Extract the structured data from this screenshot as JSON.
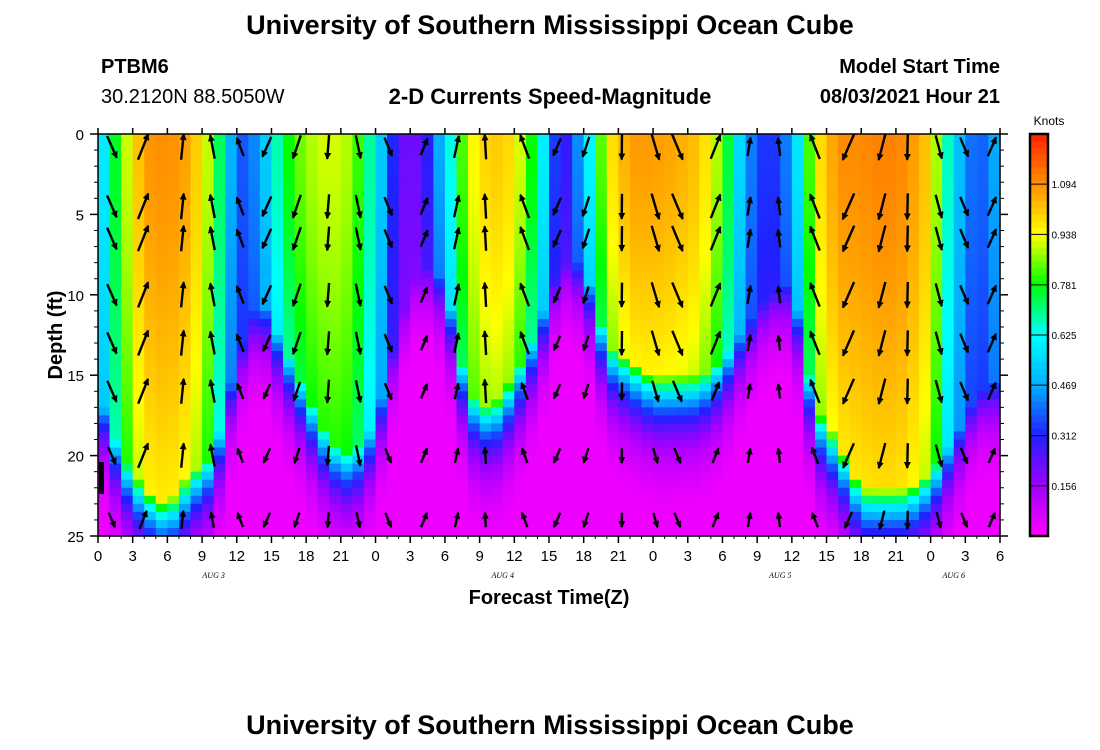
{
  "header": {
    "title": "University of Southern Mississippi Ocean Cube",
    "station": "PTBM6",
    "coords": "30.2120N  88.5050W",
    "subtitle": "2-D Currents Speed-Magnitude",
    "model_start_label": "Model Start Time",
    "model_start_value": "08/03/2021 Hour 21",
    "footer_title": "University of Southern Mississippi Ocean Cube"
  },
  "chart_data": {
    "type": "heatmap",
    "title": "2-D Currents Speed-Magnitude",
    "xlabel": "Forecast Time(Z)",
    "ylabel": "Depth (ft)",
    "x_tick_labels": [
      "0",
      "3",
      "6",
      "9",
      "12",
      "15",
      "18",
      "21",
      "0",
      "3",
      "6",
      "9",
      "12",
      "15",
      "18",
      "21",
      "0",
      "3",
      "6",
      "9",
      "12",
      "15",
      "18",
      "21",
      "0",
      "3",
      "6"
    ],
    "x_range_hours": [
      0,
      78
    ],
    "y_ticks": [
      "0",
      "5",
      "10",
      "15",
      "20",
      "25"
    ],
    "y_range": [
      0,
      25
    ],
    "y_inverted": true,
    "day_labels": [
      {
        "text": "AUG  3",
        "hour": 10
      },
      {
        "text": "AUG  4",
        "hour": 35
      },
      {
        "text": "AUG  5",
        "hour": 59
      },
      {
        "text": "AUG  6",
        "hour": 74
      }
    ],
    "colorbar": {
      "unit": "Knots",
      "ticks": [
        "1.094",
        "0.938",
        "0.781",
        "0.625",
        "0.469",
        "0.312",
        "0.156"
      ],
      "tick_values": [
        1.094,
        0.938,
        0.781,
        0.625,
        0.469,
        0.312,
        0.156
      ],
      "range": [
        0,
        1.25
      ],
      "colors": [
        "#ff00ff",
        "#a000ff",
        "#2020ff",
        "#00b0ff",
        "#00ffff",
        "#00ff00",
        "#ffff00",
        "#ff9000",
        "#ff2000"
      ]
    },
    "speed_profile": {
      "hours": [
        0,
        2,
        4,
        6,
        8,
        10,
        12,
        14,
        16,
        18,
        20,
        22,
        24,
        26,
        28,
        30,
        32,
        34,
        36,
        38,
        40,
        42,
        44,
        46,
        48,
        50,
        52,
        54,
        56,
        58,
        60,
        62,
        64,
        66,
        68,
        70,
        72,
        74,
        76,
        78
      ],
      "surface_speed": [
        0.5,
        0.85,
        1.08,
        1.1,
        1.06,
        0.85,
        0.35,
        0.45,
        0.75,
        0.88,
        0.92,
        0.88,
        0.62,
        0.22,
        0.22,
        0.55,
        0.92,
        1.02,
        0.98,
        0.72,
        0.22,
        0.5,
        0.95,
        1.08,
        1.08,
        1.06,
        1.02,
        0.85,
        0.45,
        0.3,
        0.45,
        0.95,
        1.1,
        1.1,
        1.12,
        1.1,
        1.0,
        0.55,
        0.35,
        0.5
      ],
      "bottom_depth_ft": [
        16,
        20,
        22,
        23,
        21,
        20,
        14,
        10,
        13,
        16,
        19,
        20,
        18,
        12,
        8,
        9,
        16,
        17,
        15,
        12,
        8,
        8,
        13,
        14,
        15,
        15,
        15,
        14,
        12,
        10,
        9,
        17,
        19,
        22,
        22,
        22,
        21,
        19,
        16,
        15
      ]
    },
    "vector_columns_hours": [
      1.2,
      3.9,
      7.3,
      9.9,
      12.3,
      14.6,
      17.2,
      19.9,
      22.5,
      25.1,
      28.2,
      31.0,
      33.5,
      36.9,
      39.7,
      42.2,
      45.3,
      48.2,
      50.1,
      53.4,
      56.3,
      58.9,
      62.0,
      64.9,
      67.8,
      70.0,
      72.7,
      74.9,
      77.3
    ],
    "vector_rows_depth_ft": [
      0.8,
      4.5,
      6.5,
      10,
      13,
      16,
      20,
      24
    ]
  }
}
